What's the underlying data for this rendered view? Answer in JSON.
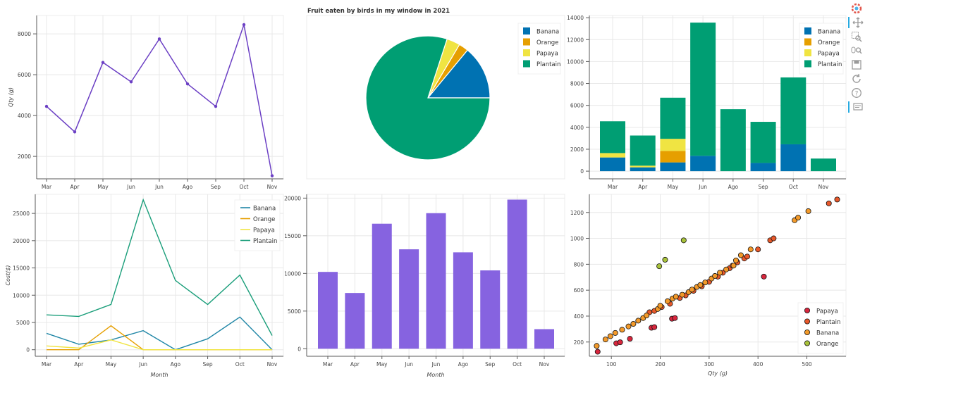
{
  "chart_data": [
    {
      "id": "line_qty",
      "type": "line",
      "title": "",
      "xlabel": "",
      "ylabel": "Qty (g)",
      "categories": [
        "Mar",
        "Apr",
        "May",
        "Jun",
        "Jun",
        "Ago",
        "Sep",
        "Oct",
        "Nov"
      ],
      "ylim": [
        900,
        8900
      ],
      "yticks": [
        2000,
        4000,
        6000,
        8000
      ],
      "series": [
        {
          "name": "Qty",
          "color": "#6b3fc4",
          "values": [
            4450,
            3200,
            6600,
            5650,
            7750,
            5550,
            4450,
            8450,
            1050
          ]
        }
      ]
    },
    {
      "id": "pie_fruit",
      "type": "pie",
      "title": "Fruit eaten by birds in my window in 2021",
      "legend_position": "top-right",
      "slices": [
        {
          "label": "Banana",
          "value": 14,
          "color": "#0072b2"
        },
        {
          "label": "Orange",
          "value": 2.5,
          "color": "#e69f00"
        },
        {
          "label": "Papaya",
          "value": 3.5,
          "color": "#f0e442"
        },
        {
          "label": "Plantain",
          "value": 80,
          "color": "#009e73"
        }
      ]
    },
    {
      "id": "stacked_bar",
      "type": "bar",
      "stacked": true,
      "title": "",
      "categories": [
        "Mar",
        "Apr",
        "May",
        "Jun",
        "Ago",
        "Sep",
        "Oct",
        "Nov"
      ],
      "ylim": [
        -700,
        14200
      ],
      "yticks": [
        0,
        2000,
        4000,
        6000,
        8000,
        10000,
        12000,
        14000
      ],
      "legend_position": "top-right",
      "series": [
        {
          "name": "Banana",
          "color": "#0072b2",
          "values": [
            1250,
            350,
            800,
            1400,
            0,
            750,
            2450,
            0
          ]
        },
        {
          "name": "Orange",
          "color": "#e69f00",
          "values": [
            0,
            0,
            1050,
            0,
            0,
            0,
            0,
            0
          ]
        },
        {
          "name": "Papaya",
          "color": "#f0e442",
          "values": [
            400,
            150,
            1100,
            0,
            0,
            0,
            0,
            0
          ]
        },
        {
          "name": "Plantain",
          "color": "#009e73",
          "values": [
            2900,
            2750,
            3750,
            12150,
            5650,
            3750,
            6100,
            1150
          ]
        }
      ]
    },
    {
      "id": "line_cost",
      "type": "line",
      "title": "",
      "xlabel": "Month",
      "ylabel": "Cost($)",
      "categories": [
        "Mar",
        "Apr",
        "May",
        "Jun",
        "Ago",
        "Sep",
        "Oct",
        "Nov"
      ],
      "ylim": [
        -1200,
        28500
      ],
      "yticks": [
        0,
        5000,
        10000,
        15000,
        20000,
        25000
      ],
      "legend_position": "top-right",
      "series": [
        {
          "name": "Banana",
          "color": "#1f86a6",
          "values": [
            3000,
            1000,
            1800,
            3500,
            0,
            2000,
            6000,
            0
          ]
        },
        {
          "name": "Orange",
          "color": "#e69f00",
          "values": [
            0,
            0,
            4400,
            0,
            0,
            0,
            0,
            0
          ]
        },
        {
          "name": "Papaya",
          "color": "#f0e442",
          "values": [
            700,
            300,
            1800,
            0,
            0,
            0,
            0,
            0
          ]
        },
        {
          "name": "Plantain",
          "color": "#1a9e7a",
          "values": [
            6400,
            6100,
            8300,
            27500,
            12700,
            8300,
            13700,
            2600
          ]
        }
      ]
    },
    {
      "id": "bar_purple",
      "type": "bar",
      "title": "",
      "xlabel": "Month",
      "categories": [
        "Mar",
        "Apr",
        "May",
        "Jun",
        "Jun",
        "Ago",
        "Sep",
        "Oct",
        "Nov"
      ],
      "ylim": [
        -1000,
        20500
      ],
      "yticks": [
        0,
        5000,
        10000,
        15000,
        20000
      ],
      "color": "#8663e0",
      "values": [
        10200,
        7400,
        16600,
        13200,
        18000,
        12800,
        10400,
        19800,
        2600
      ]
    },
    {
      "id": "scatter_qty_cost",
      "type": "scatter",
      "title": "",
      "xlabel": "Qty (g)",
      "ylabel": "",
      "xlim": [
        55,
        580
      ],
      "ylim": [
        90,
        1340
      ],
      "xticks": [
        100,
        200,
        300,
        400,
        500
      ],
      "yticks": [
        200,
        400,
        600,
        800,
        1000,
        1200
      ],
      "legend_position": "bottom-right",
      "series": [
        {
          "name": "Papaya",
          "color": "#d7263d",
          "points": [
            [
              72,
              125
            ],
            [
              110,
              190
            ],
            [
              118,
              198
            ],
            [
              138,
              225
            ],
            [
              182,
              310
            ],
            [
              188,
              315
            ],
            [
              224,
              380
            ],
            [
              230,
              385
            ],
            [
              412,
              705
            ]
          ]
        },
        {
          "name": "Plantain",
          "color": "#e8582a",
          "points": [
            [
              178,
              430
            ],
            [
              188,
              440
            ],
            [
              203,
              470
            ],
            [
              220,
              495
            ],
            [
              240,
              540
            ],
            [
              252,
              560
            ],
            [
              268,
              595
            ],
            [
              285,
              630
            ],
            [
              300,
              665
            ],
            [
              318,
              705
            ],
            [
              328,
              735
            ],
            [
              342,
              770
            ],
            [
              348,
              790
            ],
            [
              358,
              815
            ],
            [
              372,
              845
            ],
            [
              378,
              860
            ],
            [
              400,
              915
            ],
            [
              425,
              985
            ],
            [
              432,
              1000
            ],
            [
              545,
              1270
            ],
            [
              562,
              1300
            ]
          ]
        },
        {
          "name": "Banana",
          "color": "#f39a2a",
          "points": [
            [
              70,
              170
            ],
            [
              88,
              220
            ],
            [
              98,
              245
            ],
            [
              108,
              270
            ],
            [
              122,
              295
            ],
            [
              135,
              320
            ],
            [
              145,
              340
            ],
            [
              155,
              365
            ],
            [
              165,
              385
            ],
            [
              172,
              405
            ],
            [
              195,
              455
            ],
            [
              200,
              480
            ],
            [
              215,
              515
            ],
            [
              225,
              535
            ],
            [
              232,
              550
            ],
            [
              245,
              565
            ],
            [
              258,
              585
            ],
            [
              265,
              605
            ],
            [
              275,
              625
            ],
            [
              282,
              640
            ],
            [
              292,
              660
            ],
            [
              305,
              690
            ],
            [
              312,
              710
            ],
            [
              322,
              735
            ],
            [
              335,
              760
            ],
            [
              350,
              790
            ],
            [
              355,
              830
            ],
            [
              365,
              870
            ],
            [
              385,
              915
            ],
            [
              475,
              1140
            ],
            [
              482,
              1160
            ],
            [
              503,
              1210
            ]
          ]
        },
        {
          "name": "Orange",
          "color": "#a8c23a",
          "points": [
            [
              198,
              785
            ],
            [
              210,
              835
            ],
            [
              248,
              985
            ]
          ]
        }
      ]
    }
  ],
  "toolbar": {
    "tools": [
      "bokeh-logo-icon",
      "pan-icon",
      "box-zoom-icon",
      "wheel-zoom-icon",
      "save-icon",
      "reset-icon",
      "help-icon",
      "hover-icon"
    ]
  }
}
